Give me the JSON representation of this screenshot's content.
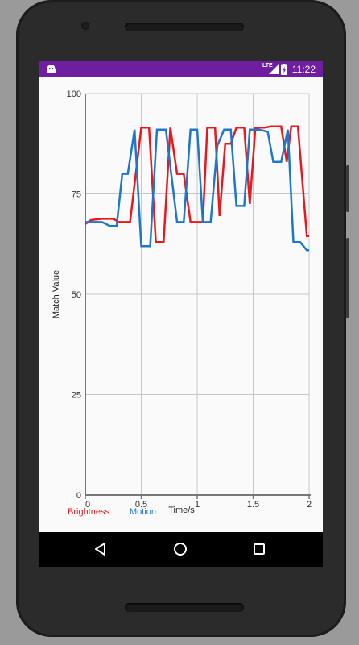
{
  "status_bar": {
    "time": "11:22",
    "network": "LTE",
    "bg_color": "#6d1fa0"
  },
  "nav_bar": {
    "icons": [
      "back-icon",
      "home-icon",
      "recents-icon"
    ]
  },
  "chart_data": {
    "type": "line",
    "xlabel": "Time/s",
    "ylabel": "Match Value",
    "xlim": [
      0,
      2
    ],
    "ylim": [
      0,
      100
    ],
    "x_ticks": [
      "0",
      "0.5",
      "1",
      "1.5",
      "2"
    ],
    "y_ticks": [
      "0",
      "25",
      "50",
      "75",
      "100"
    ],
    "grid": true,
    "legend_position": "bottom-left",
    "series": [
      {
        "name": "Brightness",
        "color": "#e8191e",
        "points": [
          [
            0,
            67.5
          ],
          [
            0.05,
            68.5
          ],
          [
            0.15,
            68.8
          ],
          [
            0.25,
            68.8
          ],
          [
            0.3,
            68
          ],
          [
            0.4,
            68
          ],
          [
            0.5,
            91.5
          ],
          [
            0.57,
            91.5
          ],
          [
            0.63,
            63
          ],
          [
            0.7,
            63
          ],
          [
            0.76,
            91.5
          ],
          [
            0.82,
            80
          ],
          [
            0.88,
            80
          ],
          [
            0.94,
            68
          ],
          [
            1.05,
            68
          ],
          [
            1.09,
            91.5
          ],
          [
            1.16,
            91.5
          ],
          [
            1.2,
            69.5
          ],
          [
            1.25,
            87.5
          ],
          [
            1.3,
            87.5
          ],
          [
            1.35,
            91.5
          ],
          [
            1.42,
            91.5
          ],
          [
            1.47,
            72.5
          ],
          [
            1.52,
            91.5
          ],
          [
            1.6,
            91.5
          ],
          [
            1.66,
            91.8
          ],
          [
            1.75,
            91.8
          ],
          [
            1.8,
            83
          ],
          [
            1.84,
            91.8
          ],
          [
            1.9,
            91.8
          ],
          [
            1.98,
            64.5
          ],
          [
            2,
            64.5
          ]
        ]
      },
      {
        "name": "Motion",
        "color": "#1f77c8",
        "points": [
          [
            0,
            68
          ],
          [
            0.1,
            68
          ],
          [
            0.15,
            68
          ],
          [
            0.22,
            67
          ],
          [
            0.28,
            67
          ],
          [
            0.33,
            80
          ],
          [
            0.38,
            80
          ],
          [
            0.44,
            91
          ],
          [
            0.5,
            62
          ],
          [
            0.58,
            62
          ],
          [
            0.64,
            91
          ],
          [
            0.72,
            91
          ],
          [
            0.82,
            68
          ],
          [
            0.88,
            68
          ],
          [
            0.94,
            91
          ],
          [
            1.0,
            91
          ],
          [
            1.05,
            68
          ],
          [
            1.12,
            68
          ],
          [
            1.18,
            87
          ],
          [
            1.24,
            91
          ],
          [
            1.3,
            91
          ],
          [
            1.35,
            72
          ],
          [
            1.42,
            72
          ],
          [
            1.47,
            91
          ],
          [
            1.55,
            91
          ],
          [
            1.63,
            90.5
          ],
          [
            1.68,
            83
          ],
          [
            1.75,
            83
          ],
          [
            1.81,
            91
          ],
          [
            1.86,
            63
          ],
          [
            1.92,
            63
          ],
          [
            1.98,
            61
          ],
          [
            2,
            61
          ]
        ]
      }
    ]
  }
}
